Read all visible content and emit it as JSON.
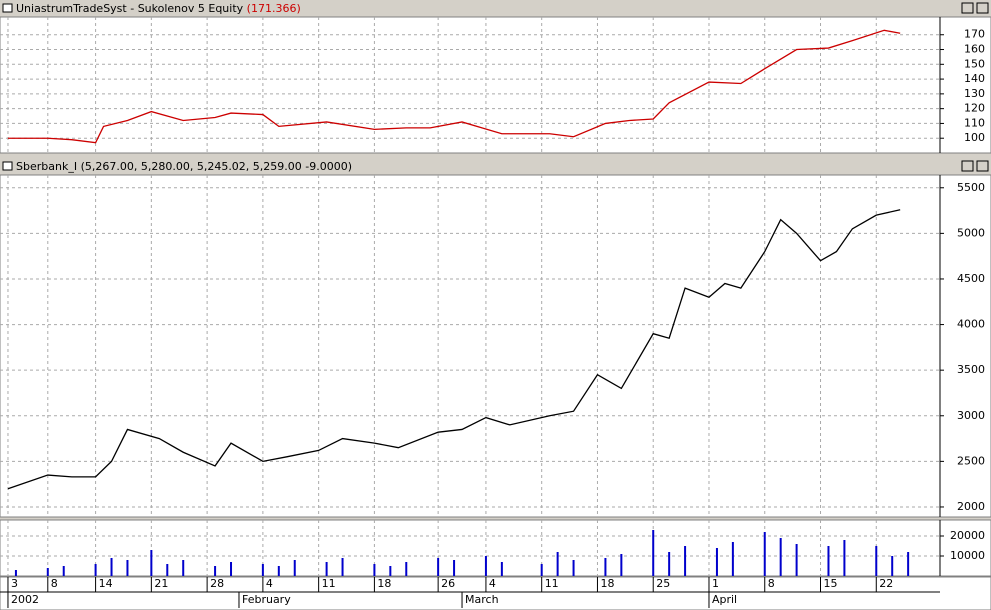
{
  "chart_data": [
    {
      "type": "line",
      "title": "UniastrumTradeSyst - Sukolenov 5 Equity",
      "subtitle": "(171.366)",
      "color": "#cc0000",
      "x": [
        "2002-01-03",
        "2002-01-08",
        "2002-01-11",
        "2002-01-14",
        "2002-01-15",
        "2002-01-18",
        "2002-01-21",
        "2002-01-25",
        "2002-01-29",
        "2002-01-31",
        "2002-02-04",
        "2002-02-06",
        "2002-02-12",
        "2002-02-18",
        "2002-02-22",
        "2002-02-25",
        "2002-03-01",
        "2002-03-06",
        "2002-03-12",
        "2002-03-15",
        "2002-03-19",
        "2002-03-22",
        "2002-03-25",
        "2002-03-27",
        "2002-04-01",
        "2002-04-05",
        "2002-04-08",
        "2002-04-12",
        "2002-04-16",
        "2002-04-19",
        "2002-04-23",
        "2002-04-25"
      ],
      "values": [
        100,
        100,
        99,
        97,
        108,
        112,
        118,
        112,
        114,
        117,
        116,
        108,
        111,
        106,
        107,
        107,
        111,
        103,
        103,
        101,
        110,
        112,
        113,
        124,
        138,
        137,
        147,
        160,
        161,
        166,
        173,
        171
      ],
      "ylim": [
        90,
        182
      ],
      "yticks": [
        100,
        110,
        120,
        130,
        140,
        150,
        160,
        170
      ],
      "grid": true
    },
    {
      "type": "line",
      "title": "Sberbank_I",
      "subtitle": "(5,267.00, 5,280.00, 5,245.02, 5,259.00 -9.0000)",
      "color": "#000000",
      "x": [
        "2002-01-03",
        "2002-01-08",
        "2002-01-11",
        "2002-01-14",
        "2002-01-16",
        "2002-01-18",
        "2002-01-22",
        "2002-01-25",
        "2002-01-29",
        "2002-01-31",
        "2002-02-04",
        "2002-02-07",
        "2002-02-11",
        "2002-02-14",
        "2002-02-18",
        "2002-02-21",
        "2002-02-26",
        "2002-03-01",
        "2002-03-04",
        "2002-03-07",
        "2002-03-12",
        "2002-03-15",
        "2002-03-18",
        "2002-03-21",
        "2002-03-25",
        "2002-03-27",
        "2002-03-29",
        "2002-04-01",
        "2002-04-03",
        "2002-04-05",
        "2002-04-08",
        "2002-04-10",
        "2002-04-12",
        "2002-04-15",
        "2002-04-17",
        "2002-04-19",
        "2002-04-22",
        "2002-04-25"
      ],
      "values": [
        2200,
        2350,
        2330,
        2330,
        2500,
        2850,
        2750,
        2600,
        2450,
        2700,
        2500,
        2550,
        2620,
        2750,
        2700,
        2650,
        2820,
        2850,
        2980,
        2900,
        3000,
        3050,
        3450,
        3300,
        3900,
        3850,
        4400,
        4300,
        4450,
        4400,
        4800,
        5150,
        5000,
        4700,
        4800,
        5050,
        5200,
        5259
      ],
      "ylim": [
        1890,
        5640
      ],
      "yticks": [
        2000,
        2500,
        3000,
        3500,
        4000,
        4500,
        5000,
        5500
      ],
      "grid": true
    },
    {
      "type": "bar",
      "color": "#0000cc",
      "x": [
        "2002-01-04",
        "2002-01-08",
        "2002-01-10",
        "2002-01-14",
        "2002-01-16",
        "2002-01-18",
        "2002-01-21",
        "2002-01-23",
        "2002-01-25",
        "2002-01-29",
        "2002-01-31",
        "2002-02-04",
        "2002-02-06",
        "2002-02-08",
        "2002-02-12",
        "2002-02-14",
        "2002-02-18",
        "2002-02-20",
        "2002-02-22",
        "2002-02-26",
        "2002-02-28",
        "2002-03-04",
        "2002-03-06",
        "2002-03-11",
        "2002-03-13",
        "2002-03-15",
        "2002-03-19",
        "2002-03-21",
        "2002-03-25",
        "2002-03-27",
        "2002-03-29",
        "2002-04-02",
        "2002-04-04",
        "2002-04-08",
        "2002-04-10",
        "2002-04-12",
        "2002-04-16",
        "2002-04-18",
        "2002-04-22",
        "2002-04-24",
        "2002-04-26"
      ],
      "values": [
        3000,
        4000,
        5000,
        6000,
        9000,
        8000,
        13000,
        6000,
        8000,
        5000,
        7000,
        6000,
        5000,
        8000,
        7000,
        9000,
        6000,
        5000,
        7000,
        9000,
        8000,
        10000,
        7000,
        6000,
        12000,
        8000,
        9000,
        11000,
        23000,
        12000,
        15000,
        14000,
        17000,
        22000,
        19000,
        16000,
        15000,
        18000,
        15000,
        10000,
        12000
      ],
      "ylim": [
        0,
        28000
      ],
      "yticks": [
        10000,
        20000
      ],
      "grid": true,
      "xlim": [
        "2002-01-02",
        "2002-04-30"
      ],
      "xticks": [
        {
          "value": "2002-01-03",
          "label": "3"
        },
        {
          "value": "2002-01-08",
          "label": "8"
        },
        {
          "value": "2002-01-14",
          "label": "14"
        },
        {
          "value": "2002-01-21",
          "label": "21"
        },
        {
          "value": "2002-01-28",
          "label": "28"
        },
        {
          "value": "2002-02-04",
          "label": "4"
        },
        {
          "value": "2002-02-11",
          "label": "11"
        },
        {
          "value": "2002-02-18",
          "label": "18"
        },
        {
          "value": "2002-02-26",
          "label": "26"
        },
        {
          "value": "2002-03-04",
          "label": "4"
        },
        {
          "value": "2002-03-11",
          "label": "11"
        },
        {
          "value": "2002-03-18",
          "label": "18"
        },
        {
          "value": "2002-03-25",
          "label": "25"
        },
        {
          "value": "2002-04-01",
          "label": "1"
        },
        {
          "value": "2002-04-08",
          "label": "8"
        },
        {
          "value": "2002-04-15",
          "label": "15"
        },
        {
          "value": "2002-04-22",
          "label": "22"
        }
      ],
      "month_ticks": [
        {
          "value": "2002-01-03",
          "label": "2002"
        },
        {
          "value": "2002-02-01",
          "label": "February"
        },
        {
          "value": "2002-03-01",
          "label": "March"
        },
        {
          "value": "2002-04-01",
          "label": "April"
        }
      ]
    }
  ]
}
